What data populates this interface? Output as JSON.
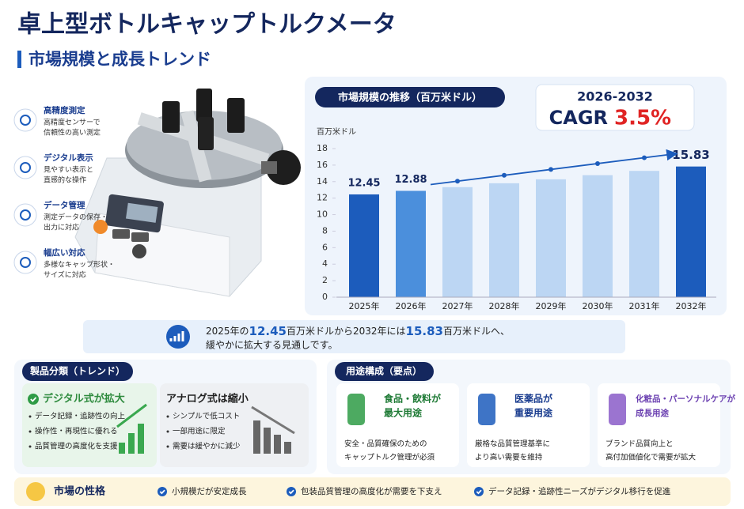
{
  "title": "卓上型ボトルキャップトルクメータ",
  "subtitle": "市場規模と成長トレンド",
  "features": [
    {
      "title": "高精度測定",
      "text": [
        "高精度センサーで",
        "信頼性の高い測定"
      ]
    },
    {
      "title": "デジタル表示",
      "text": [
        "見やすい表示と",
        "直感的な操作"
      ]
    },
    {
      "title": "データ管理",
      "text": [
        "測定データの保存・",
        "出力に対応"
      ]
    },
    {
      "title": "幅広い対応",
      "text": [
        "多様なキャップ形状・",
        "サイズに対応"
      ]
    }
  ],
  "chart_data": {
    "type": "bar",
    "title": "市場規模の推移（百万米ドル）",
    "y_unit": "百万米ドル",
    "categories": [
      "2025年",
      "2026年",
      "2027年",
      "2028年",
      "2029年",
      "2030年",
      "2031年",
      "2032年"
    ],
    "values": [
      12.45,
      12.88,
      13.33,
      13.8,
      14.28,
      14.78,
      15.3,
      15.83
    ],
    "bar_colors": [
      "#1c5cbc",
      "#4b8fdc",
      "#bcd6f3",
      "#bcd6f3",
      "#bcd6f3",
      "#bcd6f3",
      "#bcd6f3",
      "#1c5cbc"
    ],
    "labeled": [
      0,
      1,
      7
    ],
    "ylim": [
      0,
      18
    ],
    "yticks": [
      0,
      2,
      4,
      6,
      8,
      10,
      12,
      14,
      16,
      18
    ],
    "trend_color": "#1c5cbc",
    "cagr": {
      "period": "2026-2032",
      "label": "CAGR",
      "value": "3.5%"
    }
  },
  "summary": {
    "parts": [
      "2025年の",
      "12.45",
      "百万米ドルから2032年には",
      "15.83",
      "百万米ドルへ、",
      "緩やかに拡大する見通しです。"
    ]
  },
  "product_types": {
    "title": "製品分類（トレンド）",
    "cards": [
      {
        "title": "デジタル式が拡大",
        "items": [
          "データ記録・追跡性の向上",
          "操作性・再現性に優れる",
          "品質管理の高度化を支援"
        ]
      },
      {
        "title": "アナログ式は縮小",
        "items": [
          "シンプルで低コスト",
          "一部用途に限定",
          "需要は緩やかに減少"
        ]
      }
    ]
  },
  "applications": {
    "title": "用途構成（要点）",
    "cards": [
      {
        "title": [
          "食品・飲料が",
          "最大用途"
        ],
        "text": [
          "安全・品質確保のための",
          "キャップトルク管理が必須"
        ]
      },
      {
        "title": [
          "医薬品が",
          "重要用途"
        ],
        "text": [
          "厳格な品質管理基準に",
          "より高い需要を維持"
        ]
      },
      {
        "title": [
          "化粧品・パーソナルケアが",
          "成長用途"
        ],
        "text": [
          "ブランド品質向上と",
          "高付加価値化で需要が拡大"
        ]
      }
    ]
  },
  "market_nature": {
    "title": "市場の性格",
    "items": [
      "小規模だが安定成長",
      "包装品質管理の高度化が需要を下支え",
      "データ記録・追跡性ニーズがデジタル移行を促進"
    ]
  }
}
